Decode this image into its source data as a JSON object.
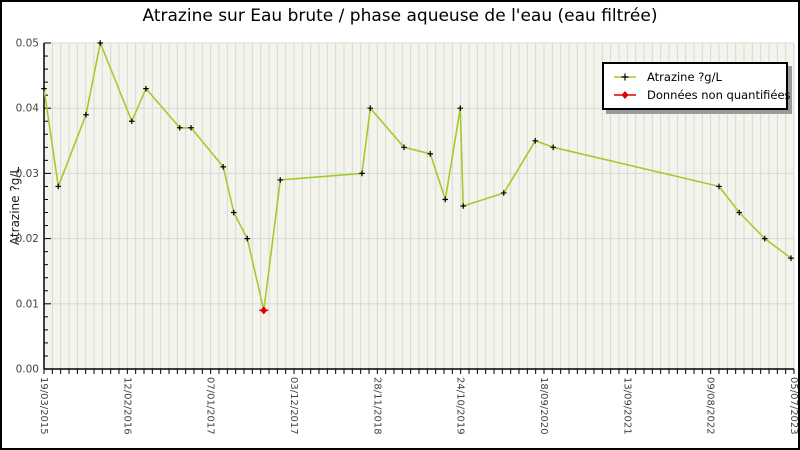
{
  "chart_data": {
    "type": "line",
    "title": "Atrazine sur Eau brute / phase aqueuse de l'eau (eau filtrée)",
    "ylabel": "Atrazine ?g/L",
    "xlabel": "",
    "ylim": [
      0,
      0.05
    ],
    "yticks": [
      "0.00",
      "0.01",
      "0.02",
      "0.03",
      "0.04",
      "0.05"
    ],
    "y_minor_divisions": 5,
    "xtick_labels": [
      "19/03/2015",
      "12/02/2016",
      "07/01/2017",
      "03/12/2017",
      "28/11/2018",
      "24/10/2019",
      "18/09/2020",
      "13/09/2021",
      "09/08/2022",
      "05/07/2023"
    ],
    "x_minor_divisions_per_major": 10,
    "grid": {
      "vertical": true,
      "horizontal": true,
      "color": "#d8d8d8"
    },
    "plot_bg": "#f4f4ec",
    "axis_color": "#000000",
    "tick_label_color": "#444444",
    "series": [
      {
        "name": "Atrazine ?g/L",
        "line_color": "#a3cb2d",
        "marker": "plus",
        "marker_color": "#000000",
        "points": [
          {
            "x_pct": 0.0,
            "value": 0.043,
            "quantified": true
          },
          {
            "x_pct": 1.9,
            "value": 0.028,
            "quantified": true
          },
          {
            "x_pct": 5.6,
            "value": 0.039,
            "quantified": true
          },
          {
            "x_pct": 7.5,
            "value": 0.05,
            "quantified": true
          },
          {
            "x_pct": 11.7,
            "value": 0.038,
            "quantified": true
          },
          {
            "x_pct": 13.6,
            "value": 0.043,
            "quantified": true
          },
          {
            "x_pct": 18.1,
            "value": 0.037,
            "quantified": true
          },
          {
            "x_pct": 19.6,
            "value": 0.037,
            "quantified": true
          },
          {
            "x_pct": 23.9,
            "value": 0.031,
            "quantified": true
          },
          {
            "x_pct": 25.3,
            "value": 0.024,
            "quantified": true
          },
          {
            "x_pct": 27.1,
            "value": 0.02,
            "quantified": true
          },
          {
            "x_pct": 29.3,
            "value": 0.009,
            "quantified": false
          },
          {
            "x_pct": 31.5,
            "value": 0.029,
            "quantified": true
          },
          {
            "x_pct": 42.4,
            "value": 0.03,
            "quantified": true
          },
          {
            "x_pct": 43.5,
            "value": 0.04,
            "quantified": true
          },
          {
            "x_pct": 48.0,
            "value": 0.034,
            "quantified": true
          },
          {
            "x_pct": 51.5,
            "value": 0.033,
            "quantified": true
          },
          {
            "x_pct": 53.5,
            "value": 0.026,
            "quantified": true
          },
          {
            "x_pct": 55.5,
            "value": 0.04,
            "quantified": true
          },
          {
            "x_pct": 55.9,
            "value": 0.025,
            "quantified": true
          },
          {
            "x_pct": 61.3,
            "value": 0.027,
            "quantified": true
          },
          {
            "x_pct": 65.5,
            "value": 0.035,
            "quantified": true
          },
          {
            "x_pct": 67.9,
            "value": 0.034,
            "quantified": true
          },
          {
            "x_pct": 90.0,
            "value": 0.028,
            "quantified": true
          },
          {
            "x_pct": 92.7,
            "value": 0.024,
            "quantified": true
          },
          {
            "x_pct": 96.1,
            "value": 0.02,
            "quantified": true
          },
          {
            "x_pct": 99.6,
            "value": 0.017,
            "quantified": true
          }
        ]
      }
    ],
    "non_quantified_color": "#dd0000",
    "legend": {
      "position": "top-right",
      "entries": [
        {
          "label": "Atrazine ?g/L",
          "line_color": "#a3cb2d",
          "marker": "plus",
          "marker_color": "#000000"
        },
        {
          "label": "Données non quantifiées",
          "line_color": "#dd0000",
          "marker": "diamond",
          "marker_color": "#dd0000"
        }
      ]
    }
  }
}
